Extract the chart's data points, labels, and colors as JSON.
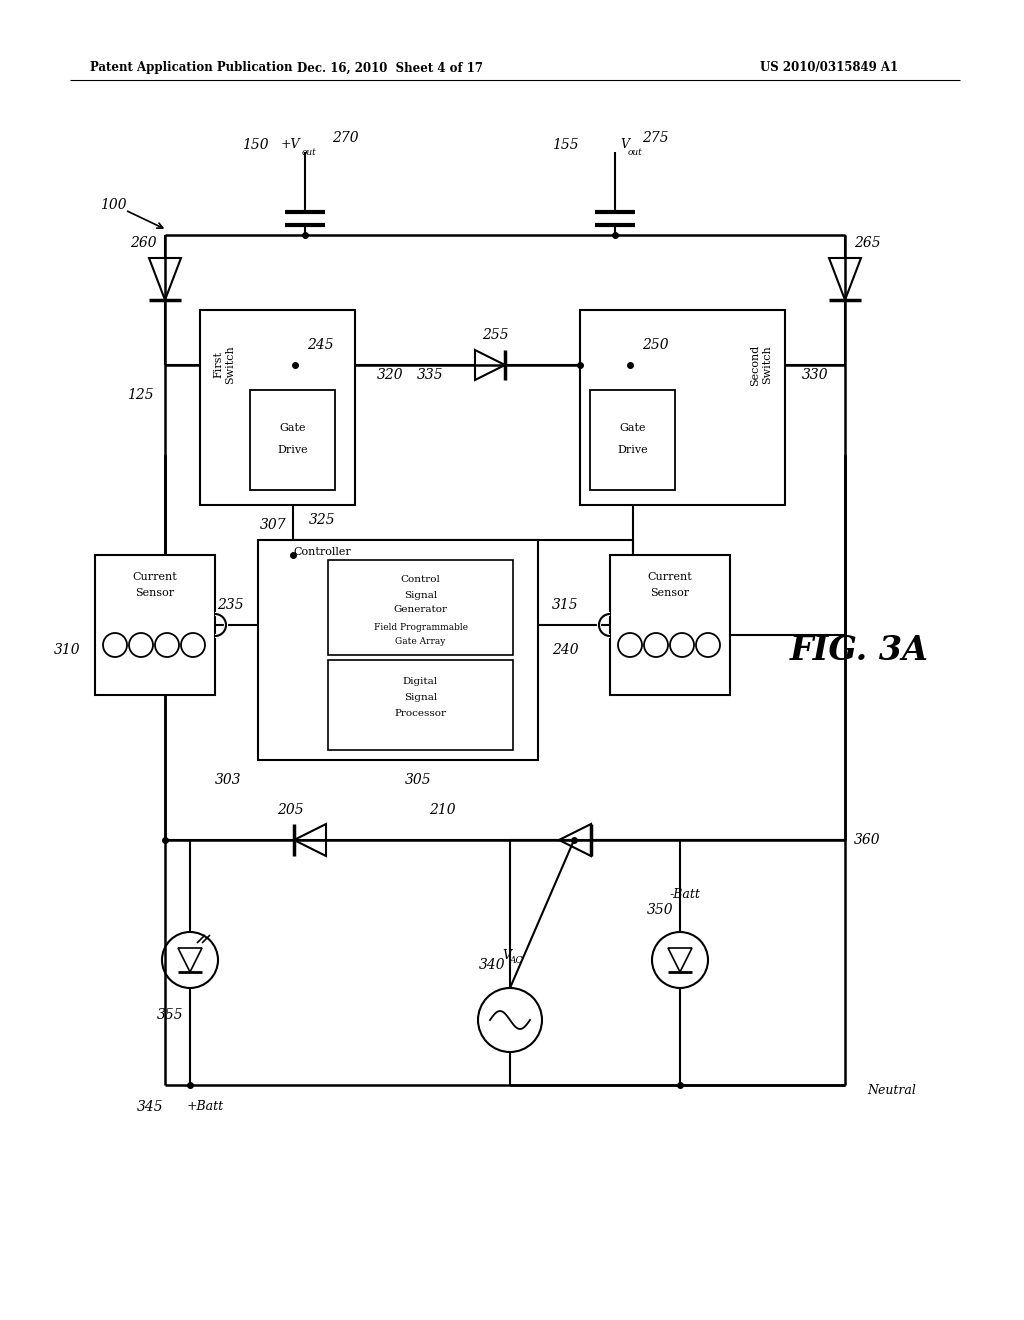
{
  "header_left": "Patent Application Publication",
  "header_mid": "Dec. 16, 2010  Sheet 4 of 17",
  "header_right": "US 2010/0315849 A1",
  "bg_color": "#ffffff",
  "fig_label": "FIG. 3A"
}
